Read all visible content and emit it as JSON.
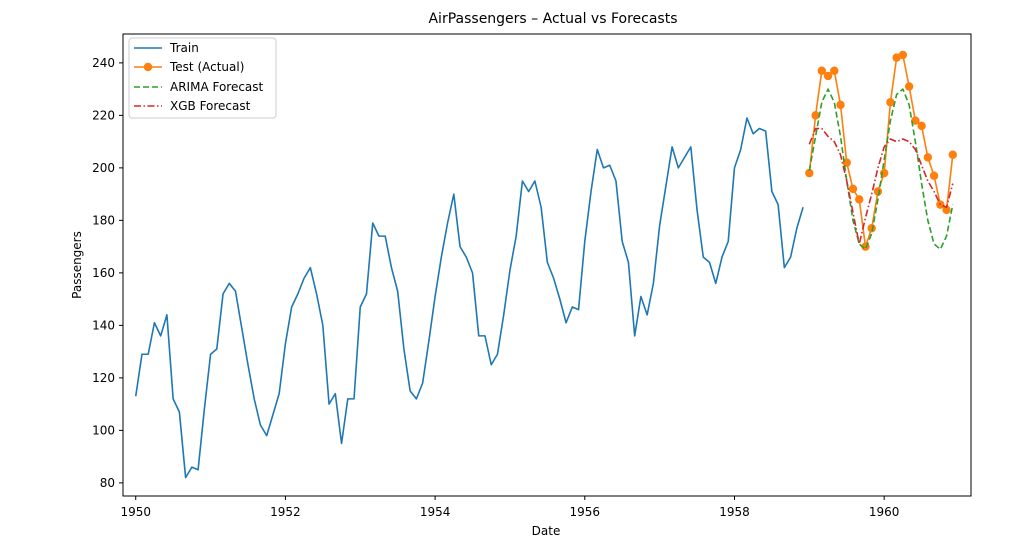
{
  "chart_data": {
    "type": "line",
    "title": "AirPassengers – Actual vs Forecasts",
    "xlabel": "Date",
    "ylabel": "Passengers",
    "xlim": [
      1949.83,
      1961.16
    ],
    "ylim": [
      75,
      251
    ],
    "xticks": [
      1950,
      1952,
      1954,
      1956,
      1958,
      1960
    ],
    "yticks": [
      80,
      100,
      120,
      140,
      160,
      180,
      200,
      220,
      240
    ],
    "grid": false,
    "legend_position": "top-left",
    "colors": {
      "train": "#1f77b4",
      "test": "#ff7f0e",
      "arima": "#2ca02c",
      "xgb": "#d62728"
    },
    "series": [
      {
        "name": "Train",
        "style": "solid",
        "x_start": 1950.0,
        "x_step": 0.08333,
        "values": [
          113,
          129,
          129,
          141,
          136,
          144,
          112,
          107,
          82,
          86,
          85,
          108,
          129,
          131,
          152,
          156,
          153,
          139,
          125,
          112,
          102,
          98,
          106,
          114,
          133,
          147,
          152,
          158,
          162,
          152,
          140,
          110,
          114,
          95,
          112,
          112,
          147,
          152,
          179,
          174,
          174,
          162,
          153,
          131,
          115,
          112,
          118,
          134,
          151,
          166,
          179,
          190,
          170,
          166,
          160,
          136,
          136,
          125,
          129,
          144,
          161,
          174,
          195,
          191,
          195,
          185,
          164,
          158,
          150,
          141,
          147,
          146,
          172,
          191,
          207,
          200,
          201,
          195,
          172,
          164,
          136,
          151,
          144,
          156,
          178,
          193,
          208,
          200,
          204,
          208,
          184,
          166,
          164,
          156,
          166,
          172,
          200,
          207,
          219,
          213,
          215,
          214,
          191,
          186,
          162,
          166,
          177,
          185
        ]
      },
      {
        "name": "Test (Actual)",
        "style": "solid-markers",
        "x_start": 1959.0,
        "x_step": 0.08333,
        "values": [
          198,
          220,
          237,
          235,
          237,
          224,
          202,
          192,
          188,
          170,
          177,
          191,
          198,
          225,
          242,
          243,
          231,
          218,
          216,
          204,
          197,
          186,
          184,
          205
        ]
      },
      {
        "name": "ARIMA Forecast",
        "style": "dashed",
        "x_start": 1959.0,
        "x_step": 0.08333,
        "values": [
          199,
          212,
          225,
          230,
          225,
          212,
          195,
          180,
          171,
          169,
          175,
          188,
          203,
          218,
          228,
          230,
          224,
          210,
          194,
          180,
          171,
          169,
          174,
          186
        ]
      },
      {
        "name": "XGB Forecast",
        "style": "dashdot",
        "x_start": 1959.0,
        "x_step": 0.08333,
        "values": [
          209,
          215,
          215,
          212,
          210,
          205,
          195,
          183,
          171,
          181,
          190,
          200,
          208,
          211,
          210,
          211,
          210,
          207,
          201,
          195,
          191,
          186,
          185,
          194
        ]
      }
    ]
  }
}
